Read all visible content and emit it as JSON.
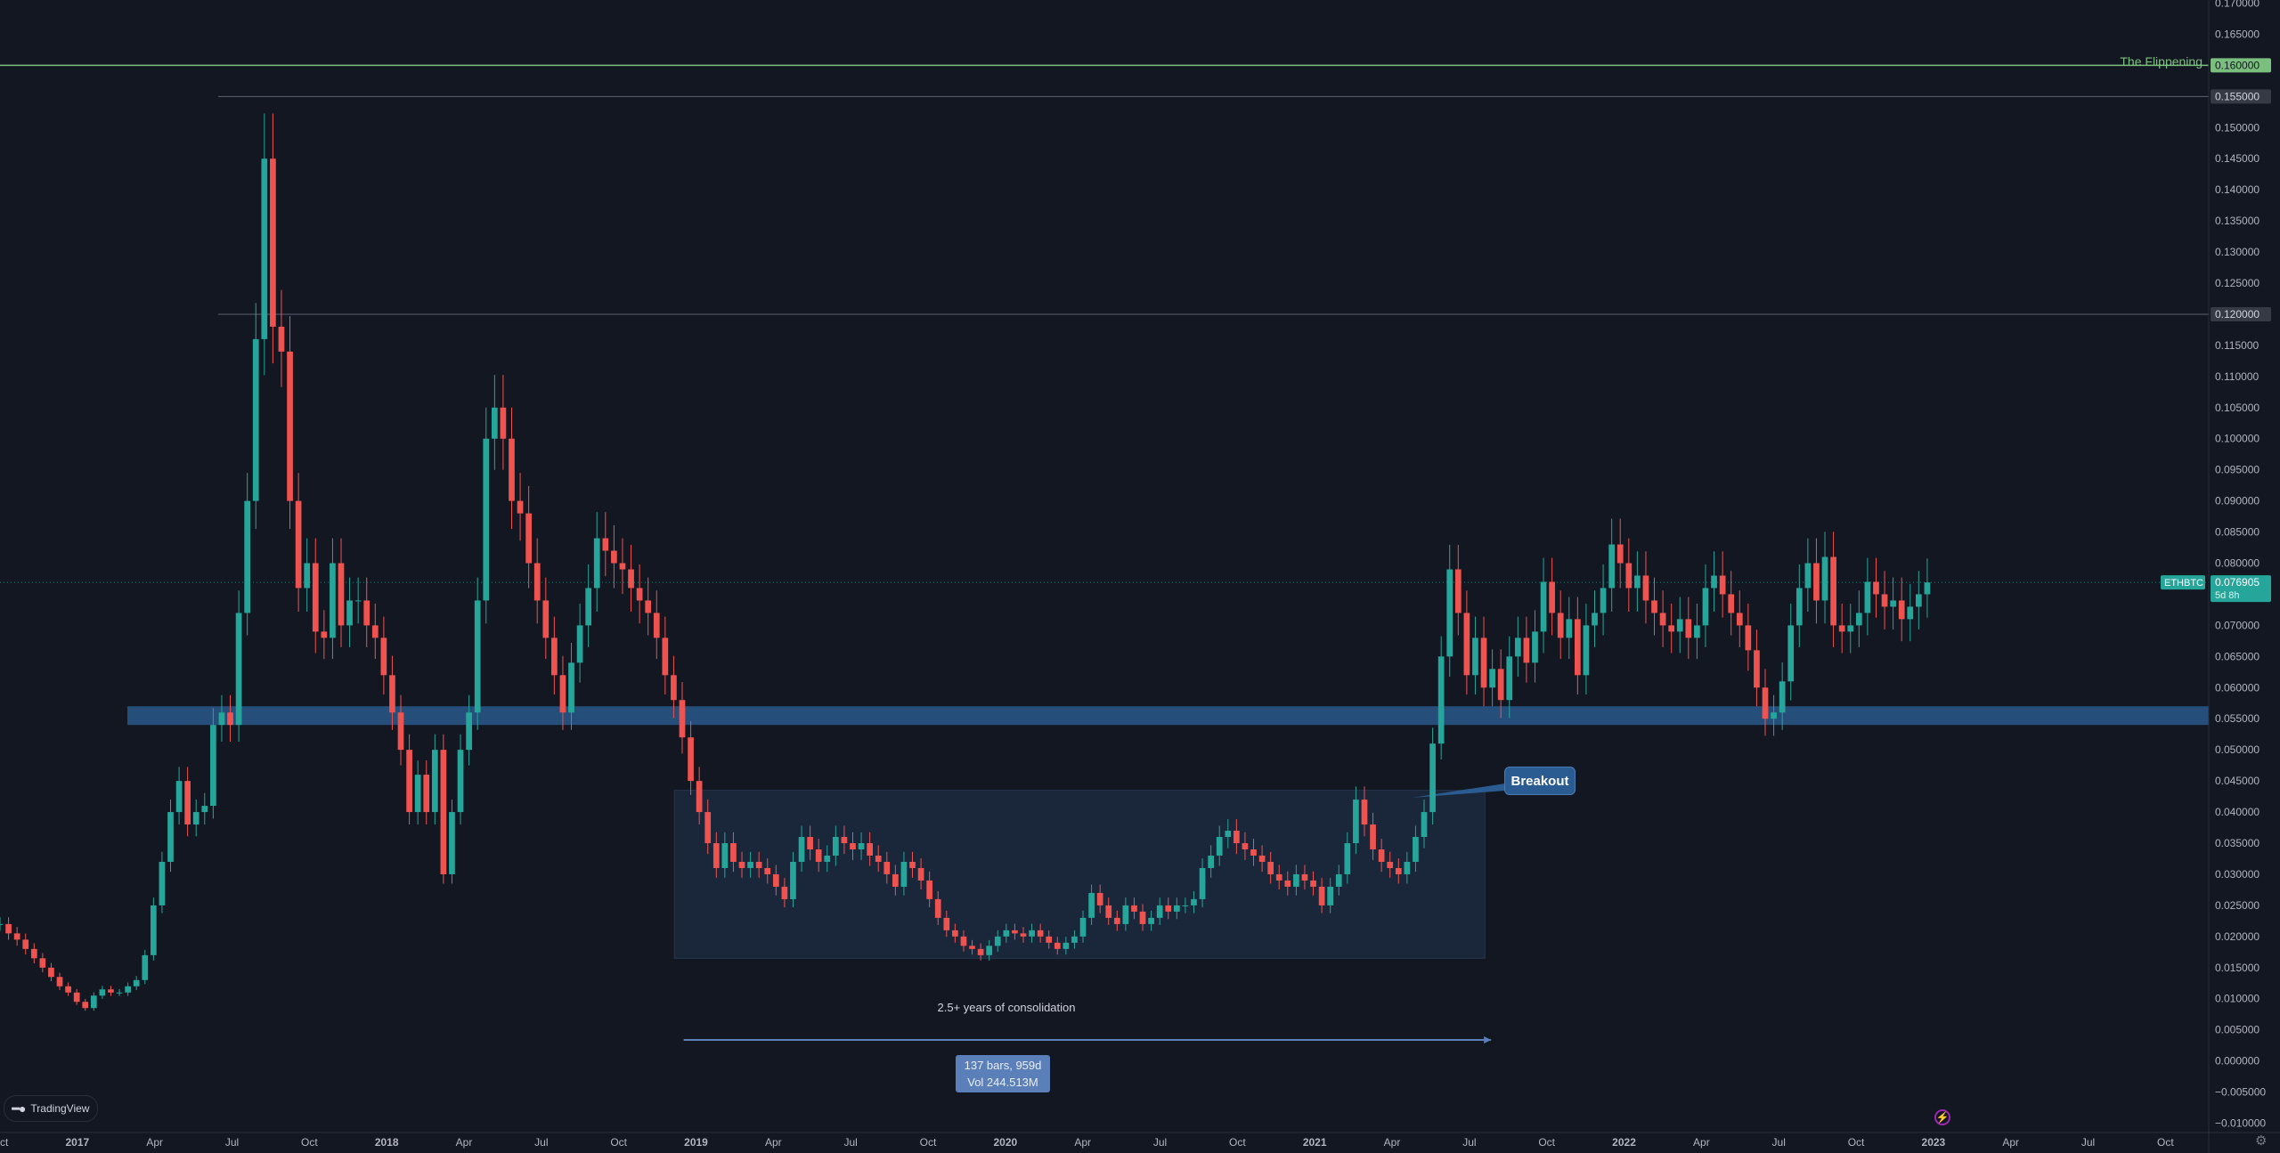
{
  "chart_data": {
    "type": "candlestick",
    "symbol": "ETHBTC",
    "current_price": "0.076905",
    "price_countdown": "5d 8h",
    "y_axis_ticks": [
      "0.170000",
      "0.165000",
      "0.160000",
      "0.155000",
      "0.150000",
      "0.145000",
      "0.140000",
      "0.135000",
      "0.130000",
      "0.125000",
      "0.120000",
      "0.115000",
      "0.110000",
      "0.105000",
      "0.100000",
      "0.095000",
      "0.090000",
      "0.085000",
      "0.080000",
      "0.075000",
      "0.070000",
      "0.065000",
      "0.060000",
      "0.055000",
      "0.050000",
      "0.045000",
      "0.040000",
      "0.035000",
      "0.030000",
      "0.025000",
      "0.020000",
      "0.015000",
      "0.010000",
      "0.005000",
      "0.000000",
      "−0.005000",
      "−0.010000"
    ],
    "ylim": [
      -0.0115,
      0.1705
    ],
    "x_axis_labels": [
      {
        "t": 2016.75,
        "label": "Oct",
        "bold": false
      },
      {
        "t": 2017.0,
        "label": "2017",
        "bold": true
      },
      {
        "t": 2017.25,
        "label": "Apr",
        "bold": false
      },
      {
        "t": 2017.5,
        "label": "Jul",
        "bold": false
      },
      {
        "t": 2017.75,
        "label": "Oct",
        "bold": false
      },
      {
        "t": 2018.0,
        "label": "2018",
        "bold": true
      },
      {
        "t": 2018.25,
        "label": "Apr",
        "bold": false
      },
      {
        "t": 2018.5,
        "label": "Jul",
        "bold": false
      },
      {
        "t": 2018.75,
        "label": "Oct",
        "bold": false
      },
      {
        "t": 2019.0,
        "label": "2019",
        "bold": true
      },
      {
        "t": 2019.25,
        "label": "Apr",
        "bold": false
      },
      {
        "t": 2019.5,
        "label": "Jul",
        "bold": false
      },
      {
        "t": 2019.75,
        "label": "Oct",
        "bold": false
      },
      {
        "t": 2020.0,
        "label": "2020",
        "bold": true
      },
      {
        "t": 2020.25,
        "label": "Apr",
        "bold": false
      },
      {
        "t": 2020.5,
        "label": "Jul",
        "bold": false
      },
      {
        "t": 2020.75,
        "label": "Oct",
        "bold": false
      },
      {
        "t": 2021.0,
        "label": "2021",
        "bold": true
      },
      {
        "t": 2021.25,
        "label": "Apr",
        "bold": false
      },
      {
        "t": 2021.5,
        "label": "Jul",
        "bold": false
      },
      {
        "t": 2021.75,
        "label": "Oct",
        "bold": false
      },
      {
        "t": 2022.0,
        "label": "2022",
        "bold": true
      },
      {
        "t": 2022.25,
        "label": "Apr",
        "bold": false
      },
      {
        "t": 2022.5,
        "label": "Jul",
        "bold": false
      },
      {
        "t": 2022.75,
        "label": "Oct",
        "bold": false
      },
      {
        "t": 2023.0,
        "label": "2023",
        "bold": true
      },
      {
        "t": 2023.25,
        "label": "Apr",
        "bold": false
      },
      {
        "t": 2023.5,
        "label": "Jul",
        "bold": false
      },
      {
        "t": 2023.75,
        "label": "Oct",
        "bold": false
      }
    ],
    "xlim": [
      2016.75,
      2023.89
    ],
    "close_series_approx": [
      0.022,
      0.0205,
      0.0195,
      0.018,
      0.0165,
      0.015,
      0.0135,
      0.012,
      0.011,
      0.0095,
      0.0085,
      0.0105,
      0.0115,
      0.011,
      0.011,
      0.012,
      0.013,
      0.017,
      0.025,
      0.032,
      0.04,
      0.045,
      0.038,
      0.04,
      0.041,
      0.054,
      0.056,
      0.054,
      0.072,
      0.09,
      0.116,
      0.145,
      0.118,
      0.114,
      0.09,
      0.076,
      0.08,
      0.069,
      0.068,
      0.08,
      0.07,
      0.074,
      0.074,
      0.07,
      0.068,
      0.062,
      0.056,
      0.05,
      0.04,
      0.046,
      0.04,
      0.05,
      0.03,
      0.04,
      0.05,
      0.056,
      0.074,
      0.1,
      0.105,
      0.1,
      0.09,
      0.088,
      0.08,
      0.074,
      0.068,
      0.062,
      0.056,
      0.064,
      0.07,
      0.076,
      0.084,
      0.082,
      0.08,
      0.079,
      0.076,
      0.074,
      0.072,
      0.068,
      0.062,
      0.058,
      0.052,
      0.045,
      0.04,
      0.035,
      0.031,
      0.035,
      0.032,
      0.031,
      0.032,
      0.031,
      0.03,
      0.028,
      0.026,
      0.032,
      0.036,
      0.034,
      0.032,
      0.033,
      0.036,
      0.035,
      0.034,
      0.035,
      0.033,
      0.032,
      0.03,
      0.028,
      0.032,
      0.031,
      0.029,
      0.026,
      0.023,
      0.021,
      0.02,
      0.0185,
      0.018,
      0.017,
      0.0185,
      0.02,
      0.021,
      0.0205,
      0.02,
      0.021,
      0.02,
      0.019,
      0.018,
      0.019,
      0.02,
      0.023,
      0.027,
      0.025,
      0.023,
      0.022,
      0.025,
      0.024,
      0.022,
      0.023,
      0.025,
      0.024,
      0.025,
      0.025,
      0.026,
      0.031,
      0.033,
      0.036,
      0.037,
      0.035,
      0.034,
      0.033,
      0.032,
      0.03,
      0.029,
      0.028,
      0.03,
      0.029,
      0.028,
      0.025,
      0.028,
      0.03,
      0.035,
      0.042,
      0.038,
      0.034,
      0.032,
      0.031,
      0.03,
      0.032,
      0.036,
      0.04,
      0.051,
      0.065,
      0.079,
      0.072,
      0.062,
      0.068,
      0.06,
      0.063,
      0.058,
      0.065,
      0.068,
      0.064,
      0.069,
      0.077,
      0.072,
      0.068,
      0.071,
      0.062,
      0.07,
      0.072,
      0.076,
      0.083,
      0.08,
      0.076,
      0.078,
      0.074,
      0.072,
      0.07,
      0.069,
      0.071,
      0.068,
      0.07,
      0.076,
      0.078,
      0.075,
      0.072,
      0.07,
      0.066,
      0.06,
      0.055,
      0.056,
      0.061,
      0.07,
      0.076,
      0.08,
      0.074,
      0.081,
      0.07,
      0.069,
      0.07,
      0.072,
      0.077,
      0.075,
      0.073,
      0.074,
      0.071,
      0.073,
      0.075,
      0.0769
    ],
    "close_series_range": [
      2016.75,
      2022.98
    ],
    "horizontal_levels": [
      {
        "value": 0.16,
        "label": "0.160000",
        "color": "#7bbf7e",
        "name": "The Flippening"
      },
      {
        "value": 0.155,
        "label": "0.155000",
        "color": "#5d6170"
      },
      {
        "value": 0.12,
        "label": "0.120000",
        "color": "#5d6170"
      }
    ],
    "support_zone": {
      "from": 0.054,
      "to": 0.057,
      "color": "#2b5c91"
    },
    "consolidation_box": {
      "t_start": 2018.93,
      "t_end": 2021.55,
      "from": 0.0165,
      "to": 0.0435
    },
    "measure_range": {
      "t_start": 2018.96,
      "t_end": 2021.57
    },
    "colors": {
      "up": "#26a69a",
      "down": "#ef5350",
      "background": "#131722",
      "axis_text": "#b2b5be"
    }
  },
  "annotations": {
    "flippening": "The Flippening",
    "breakout": "Breakout",
    "consolidation": "2.5+ years of consolidation",
    "measure_bars": "137 bars, 959d",
    "measure_vol": "Vol 244.513M"
  },
  "branding": {
    "name": "TradingView"
  },
  "icons": {
    "settings": "gear-icon",
    "lightning": "lightning-icon"
  }
}
